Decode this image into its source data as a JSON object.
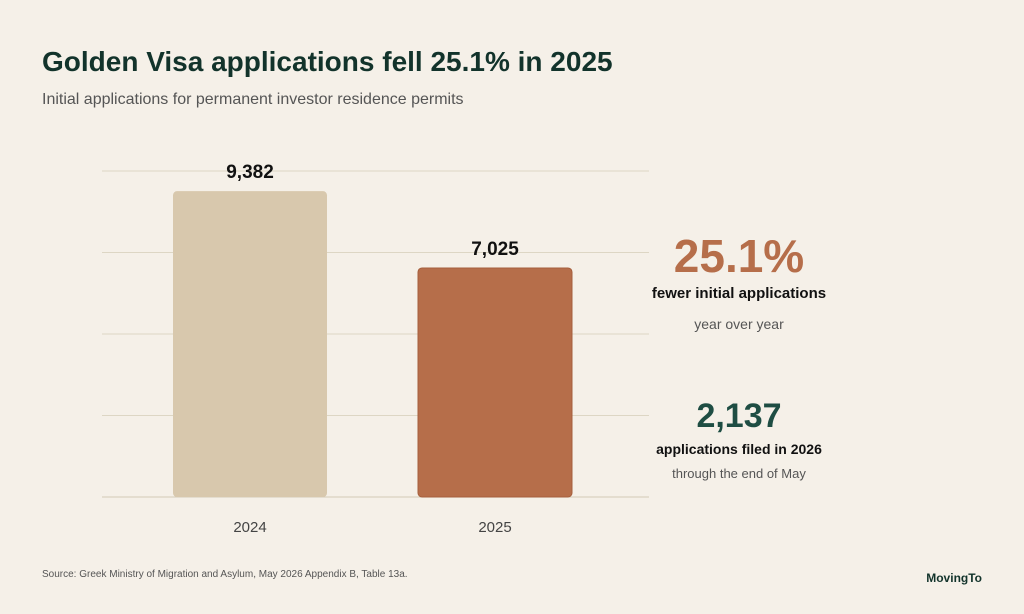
{
  "title": "Golden Visa applications fell 25.1% in 2025",
  "subtitle": "Initial applications for permanent investor residence permits",
  "chart_data": {
    "type": "bar",
    "categories": [
      "2024",
      "2025"
    ],
    "values": [
      9382,
      7025
    ],
    "value_labels": [
      "9,382",
      "7,025"
    ],
    "ylim": [
      0,
      10000
    ],
    "grid": true,
    "colors": [
      "#d8c8ad",
      "#b66e4a"
    ]
  },
  "stats": {
    "decline": {
      "value": "25.1%",
      "label": "fewer initial applications",
      "sublabel": "year over year",
      "color": "#b66e4a"
    },
    "ytd": {
      "value": "2,137",
      "label": "applications filed in 2026",
      "sublabel": "through the end of May",
      "color": "#1e4d43"
    }
  },
  "source": "Source: Greek Ministry of Migration and Asylum, May 2026 Appendix B, Table 13a.",
  "brand": "MovingTo",
  "colors": {
    "background": "#f5f0e8",
    "title": "#12332b",
    "gridline": "#ddd6c4"
  }
}
